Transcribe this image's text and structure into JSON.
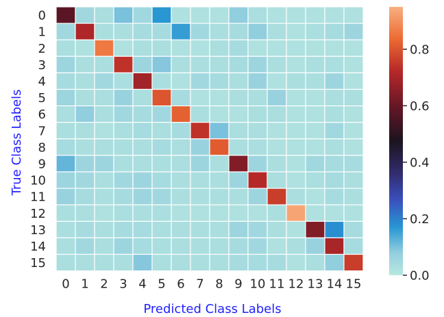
{
  "chart_data": {
    "type": "heatmap",
    "title": "",
    "xlabel": "Predicted Class Labels",
    "ylabel": "True Class Labels",
    "label_color": "#1f1fff",
    "x_categories": [
      "0",
      "1",
      "2",
      "3",
      "4",
      "5",
      "6",
      "7",
      "8",
      "9",
      "10",
      "11",
      "12",
      "13",
      "14",
      "15"
    ],
    "y_categories": [
      "0",
      "1",
      "2",
      "3",
      "4",
      "5",
      "6",
      "7",
      "8",
      "9",
      "10",
      "11",
      "12",
      "13",
      "14",
      "15"
    ],
    "values": [
      [
        0.58,
        0.05,
        0.03,
        0.1,
        0.05,
        0.17,
        0.02,
        0.02,
        0.02,
        0.08,
        0.03,
        0.02,
        0.02,
        0.02,
        0.02,
        0.02
      ],
      [
        0.05,
        0.71,
        0.03,
        0.03,
        0.04,
        0.04,
        0.16,
        0.05,
        0.03,
        0.04,
        0.08,
        0.03,
        0.02,
        0.03,
        0.04,
        0.06
      ],
      [
        0.03,
        0.02,
        0.86,
        0.02,
        0.03,
        0.03,
        0.02,
        0.02,
        0.03,
        0.04,
        0.02,
        0.02,
        0.02,
        0.02,
        0.02,
        0.02
      ],
      [
        0.06,
        0.03,
        0.03,
        0.74,
        0.06,
        0.09,
        0.03,
        0.03,
        0.03,
        0.04,
        0.06,
        0.03,
        0.02,
        0.03,
        0.03,
        0.02
      ],
      [
        0.04,
        0.03,
        0.05,
        0.03,
        0.69,
        0.03,
        0.02,
        0.05,
        0.04,
        0.03,
        0.07,
        0.02,
        0.03,
        0.03,
        0.06,
        0.02
      ],
      [
        0.06,
        0.03,
        0.03,
        0.07,
        0.03,
        0.8,
        0.04,
        0.02,
        0.02,
        0.03,
        0.03,
        0.07,
        0.02,
        0.02,
        0.03,
        0.03
      ],
      [
        0.03,
        0.08,
        0.03,
        0.05,
        0.04,
        0.05,
        0.82,
        0.03,
        0.02,
        0.02,
        0.03,
        0.03,
        0.02,
        0.02,
        0.03,
        0.02
      ],
      [
        0.03,
        0.03,
        0.02,
        0.03,
        0.04,
        0.03,
        0.04,
        0.74,
        0.1,
        0.03,
        0.03,
        0.02,
        0.02,
        0.02,
        0.05,
        0.02
      ],
      [
        0.04,
        0.03,
        0.03,
        0.03,
        0.03,
        0.04,
        0.03,
        0.07,
        0.81,
        0.03,
        0.03,
        0.02,
        0.02,
        0.02,
        0.03,
        0.02
      ],
      [
        0.12,
        0.06,
        0.06,
        0.03,
        0.03,
        0.03,
        0.03,
        0.06,
        0.03,
        0.64,
        0.06,
        0.03,
        0.02,
        0.05,
        0.04,
        0.04
      ],
      [
        0.06,
        0.05,
        0.03,
        0.05,
        0.06,
        0.04,
        0.03,
        0.03,
        0.03,
        0.06,
        0.72,
        0.03,
        0.02,
        0.03,
        0.04,
        0.03
      ],
      [
        0.07,
        0.04,
        0.03,
        0.04,
        0.06,
        0.05,
        0.03,
        0.03,
        0.03,
        0.03,
        0.06,
        0.76,
        0.03,
        0.02,
        0.04,
        0.03
      ],
      [
        0.03,
        0.03,
        0.02,
        0.03,
        0.03,
        0.03,
        0.02,
        0.02,
        0.02,
        0.02,
        0.02,
        0.03,
        0.93,
        0.02,
        0.02,
        0.02
      ],
      [
        0.03,
        0.04,
        0.03,
        0.04,
        0.04,
        0.03,
        0.03,
        0.03,
        0.03,
        0.06,
        0.05,
        0.03,
        0.02,
        0.64,
        0.18,
        0.04
      ],
      [
        0.03,
        0.05,
        0.03,
        0.06,
        0.04,
        0.03,
        0.03,
        0.03,
        0.03,
        0.04,
        0.05,
        0.02,
        0.03,
        0.07,
        0.7,
        0.04
      ],
      [
        0.03,
        0.03,
        0.03,
        0.03,
        0.09,
        0.03,
        0.03,
        0.03,
        0.03,
        0.04,
        0.04,
        0.04,
        0.02,
        0.03,
        0.08,
        0.76
      ]
    ],
    "colorbar": {
      "min": 0.0,
      "max": 0.95,
      "ticks": [
        "0.0",
        "0.2",
        "0.4",
        "0.6",
        "0.8"
      ],
      "tick_values": [
        0.0,
        0.2,
        0.4,
        0.6,
        0.8
      ]
    },
    "grid": false,
    "legend": "colorbar-right"
  }
}
